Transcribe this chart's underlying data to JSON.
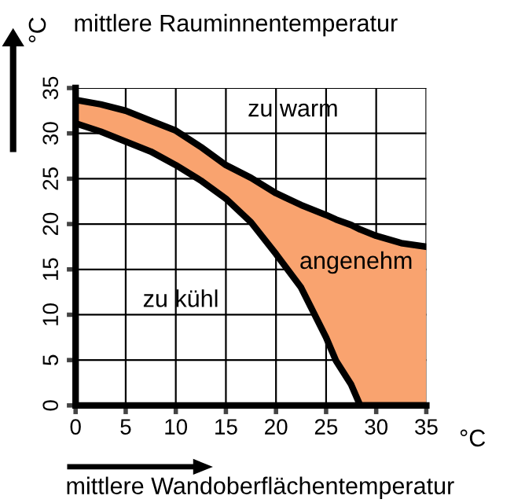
{
  "chart_data": {
    "type": "area",
    "xlabel": "mittlere Wandoberflächentemperatur",
    "ylabel": "mittlere Rauminnentemperatur",
    "x": [
      0,
      2.5,
      5,
      7.5,
      10,
      12.5,
      15,
      17.5,
      20,
      22.5,
      25,
      26,
      27.5,
      28.4,
      30,
      32.5,
      35
    ],
    "series": [
      {
        "color": "#f9a36f",
        "values": [
          33.7,
          33.2,
          32.5,
          31.4,
          30.3,
          28.5,
          26.5,
          25.1,
          23.4,
          22.1,
          21.0,
          20.5,
          19.9,
          19.4,
          18.7,
          17.9,
          17.5
        ]
      },
      {
        "type": "line",
        "color": "#000000",
        "values": [
          31.1,
          30.2,
          29.1,
          28.0,
          26.5,
          24.8,
          22.8,
          20.2,
          16.7,
          13.0,
          7.5,
          4.9,
          2.3,
          0,
          0,
          0,
          0
        ]
      }
    ],
    "xlim": [
      0,
      35
    ],
    "ylim": [
      0,
      35
    ],
    "xticks": [
      0,
      5,
      10,
      15,
      20,
      25,
      30,
      35
    ],
    "yticks": [
      0,
      5,
      10,
      15,
      20,
      25,
      30,
      35
    ],
    "grid": true,
    "annotations": [
      "zu warm",
      "angenehm",
      "zu kühl",
      "°C",
      "°C"
    ]
  }
}
